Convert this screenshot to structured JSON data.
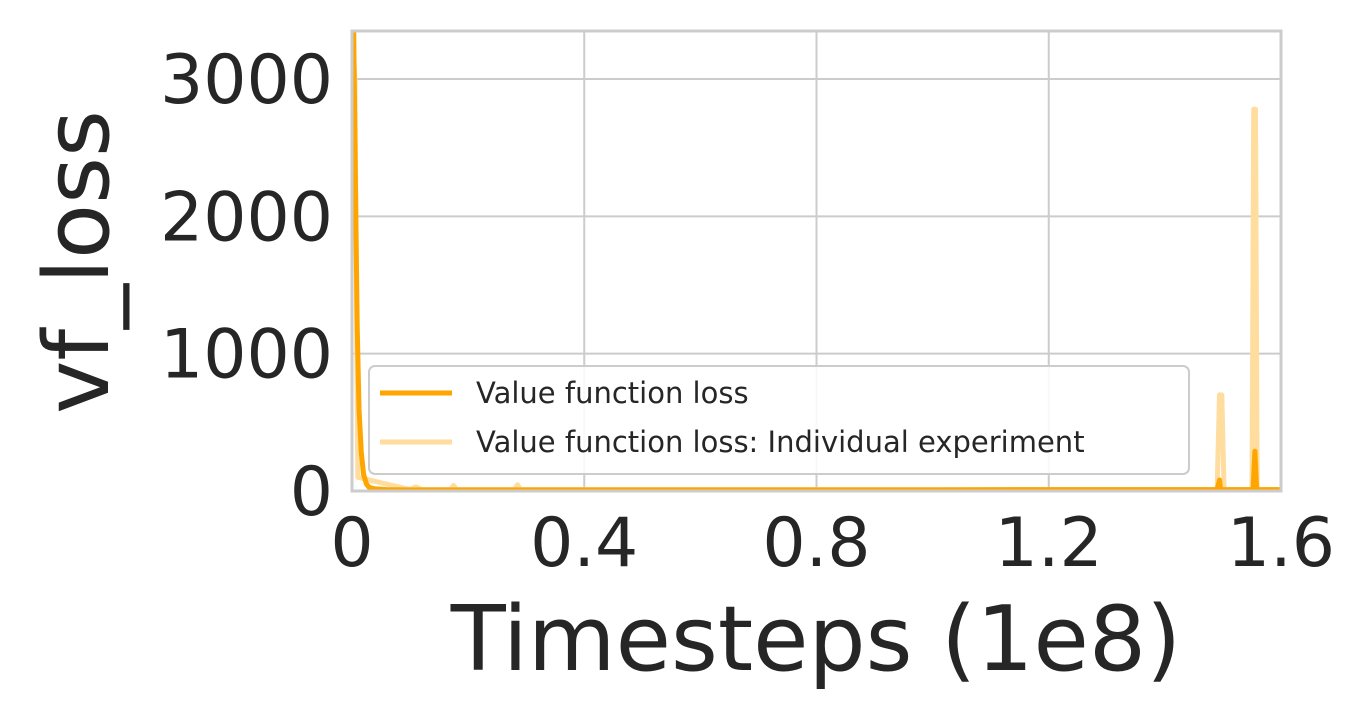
{
  "chart_data": {
    "type": "line",
    "title": "",
    "xlabel": "Timesteps (1e8)",
    "ylabel": "vf_loss",
    "xlim": [
      0,
      1.6
    ],
    "ylim": [
      0,
      3350
    ],
    "xticks": [
      0,
      0.4,
      0.8,
      1.2,
      1.6
    ],
    "xtick_labels": [
      "0",
      "0.4",
      "0.8",
      "1.2",
      "1.6"
    ],
    "yticks": [
      0,
      1000,
      2000,
      3000
    ],
    "ytick_labels": [
      "0",
      "1000",
      "2000",
      "3000"
    ],
    "grid": true,
    "legend_position": "lower-left",
    "series": [
      {
        "name": "Value function loss",
        "color": "#ffa500",
        "x": [
          0,
          0.003,
          0.006,
          0.009,
          0.012,
          0.016,
          0.02,
          0.025,
          0.03,
          0.04,
          0.06,
          0.1,
          0.2,
          0.4,
          0.6,
          0.8,
          1.0,
          1.2,
          1.4,
          1.49,
          1.494,
          1.496,
          1.5,
          1.54,
          1.552,
          1.555,
          1.558,
          1.565,
          1.6
        ],
        "y": [
          3350,
          3350,
          2200,
          1200,
          600,
          280,
          120,
          50,
          25,
          15,
          10,
          8,
          8,
          8,
          8,
          8,
          8,
          10,
          10,
          10,
          80,
          10,
          10,
          10,
          10,
          290,
          10,
          10,
          10
        ]
      },
      {
        "name": "Value function loss: Individual experiment",
        "color": "#ffdd9e",
        "x": [
          0,
          0.005,
          0.01,
          0.1,
          0.11,
          0.12,
          0.17,
          0.175,
          0.18,
          0.28,
          0.285,
          0.29,
          0.6,
          1.0,
          1.4,
          1.49,
          1.494,
          1.498,
          1.502,
          1.55,
          1.553,
          1.556,
          1.559,
          1.6
        ],
        "y": [
          3350,
          3000,
          100,
          10,
          30,
          10,
          10,
          40,
          10,
          10,
          45,
          10,
          10,
          10,
          10,
          10,
          700,
          700,
          10,
          10,
          2780,
          2780,
          10,
          10
        ]
      }
    ]
  }
}
